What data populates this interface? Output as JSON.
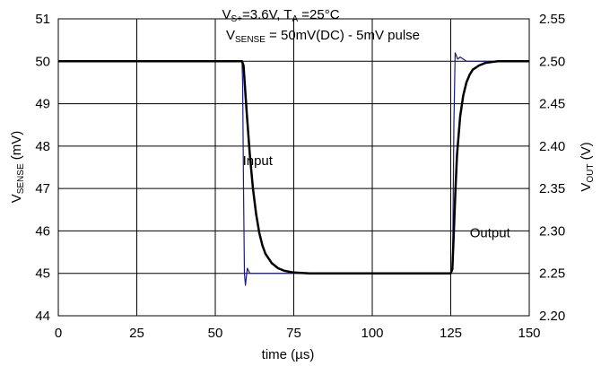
{
  "chart_data": {
    "type": "line",
    "title_line1": {
      "parts": [
        {
          "text": "V",
          "sub": false
        },
        {
          "text": "S+",
          "sub": true
        },
        {
          "text": "=3.6V, T",
          "sub": false
        },
        {
          "text": "A",
          "sub": true
        },
        {
          "text": " =25°C",
          "sub": false
        }
      ]
    },
    "title_line2": {
      "parts": [
        {
          "text": "V",
          "sub": false
        },
        {
          "text": "SENSE",
          "sub": true
        },
        {
          "text": " = 50mV(DC) - 5mV pulse",
          "sub": false
        }
      ]
    },
    "xlabel": "time (µs)",
    "ylabel_left": {
      "main": "V",
      "sub": "SENSE",
      "unit": " (mV)"
    },
    "ylabel_right": {
      "main": "V",
      "sub": "OUT",
      "unit": " (V)"
    },
    "xlim": [
      0,
      150
    ],
    "ylim_left": [
      44,
      51
    ],
    "ylim_right": [
      2.2,
      2.55
    ],
    "x_ticks": [
      "0",
      "25",
      "50",
      "75",
      "100",
      "125",
      "150"
    ],
    "y_left_ticks": [
      "44",
      "45",
      "46",
      "47",
      "48",
      "49",
      "50",
      "51"
    ],
    "y_right_ticks": [
      "2.20",
      "2.25",
      "2.30",
      "2.35",
      "2.40",
      "2.45",
      "2.50",
      "2.55"
    ],
    "grid": true,
    "annotations": [
      {
        "text": "Input",
        "x": 63.5,
        "y": 47.55
      },
      {
        "text": "Output",
        "x": 137.5,
        "y": 45.85
      }
    ],
    "series": [
      {
        "name": "Input",
        "axis": "left",
        "color": "#1a1a80",
        "x": [
          0,
          58.5,
          58.7,
          59.0,
          59.3,
          59.6,
          60.2,
          61,
          65,
          70,
          80,
          100,
          125,
          125.6,
          126.0,
          126.4,
          126.7,
          127.2,
          128.0,
          130,
          150
        ],
        "y": [
          50.0,
          50.0,
          49.5,
          47.0,
          45.0,
          44.72,
          45.12,
          45.0,
          45.0,
          45.0,
          45.0,
          45.0,
          45.0,
          45.2,
          48.5,
          50.2,
          50.15,
          50.05,
          50.1,
          50.0,
          50.0
        ]
      },
      {
        "name": "Output",
        "axis": "right",
        "color": "#000000",
        "x": [
          0,
          58.5,
          59,
          60,
          61,
          62,
          63,
          64,
          65,
          66,
          68,
          70,
          72,
          75,
          80,
          125,
          125.5,
          126,
          126.5,
          127,
          128,
          129,
          130,
          131,
          132,
          134,
          136,
          138,
          140,
          142,
          145,
          150
        ],
        "y": [
          2.5,
          2.5,
          2.495,
          2.44,
          2.39,
          2.35,
          2.32,
          2.298,
          2.283,
          2.273,
          2.262,
          2.256,
          2.253,
          2.251,
          2.25,
          2.25,
          2.255,
          2.3,
          2.35,
          2.39,
          2.435,
          2.46,
          2.475,
          2.484,
          2.49,
          2.495,
          2.498,
          2.499,
          2.5,
          2.5,
          2.5,
          2.5
        ]
      }
    ]
  }
}
